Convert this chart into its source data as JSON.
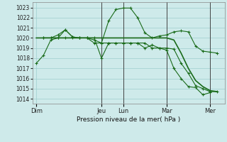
{
  "background_color": "#ceeaea",
  "grid_color": "#9ecece",
  "line_color": "#1a6b1a",
  "xlabel": "Pression niveau de la mer( hPa )",
  "ylim": [
    1013.5,
    1023.5
  ],
  "yticks": [
    1014,
    1015,
    1016,
    1017,
    1018,
    1019,
    1020,
    1021,
    1022,
    1023
  ],
  "xtick_labels": [
    "Dim",
    "Jeu",
    "Lun",
    "Mar",
    "Mer"
  ],
  "xtick_positions": [
    0,
    9,
    12,
    18,
    24
  ],
  "xlim": [
    -0.5,
    26
  ],
  "vline_positions": [
    9,
    12,
    18,
    24
  ],
  "series1_x": [
    0,
    1,
    2,
    3,
    4,
    5,
    6,
    7,
    8,
    9,
    10,
    11,
    12,
    13,
    14,
    15,
    16,
    17,
    18,
    19,
    20,
    21,
    22,
    23,
    24
  ],
  "series1_y": [
    1017.5,
    1018.3,
    1019.8,
    1020.0,
    1020.8,
    1020.1,
    1020.0,
    1020.0,
    1020.0,
    1018.0,
    1019.5,
    1019.5,
    1019.5,
    1019.5,
    1019.5,
    1019.0,
    1019.3,
    1019.0,
    1018.8,
    1017.0,
    1016.0,
    1015.2,
    1015.1,
    1014.4,
    1014.6
  ],
  "series2_x": [
    1,
    2,
    3,
    4,
    5,
    6,
    7,
    8,
    9,
    10,
    11,
    12,
    13,
    14,
    15,
    16,
    17,
    18,
    19,
    20,
    21,
    22,
    23,
    24,
    25
  ],
  "series2_y": [
    1020.0,
    1020.0,
    1020.3,
    1020.8,
    1020.1,
    1020.0,
    1020.0,
    1019.8,
    1019.5,
    1021.7,
    1022.8,
    1022.95,
    1022.95,
    1022.0,
    1020.5,
    1020.0,
    1020.2,
    1020.3,
    1020.6,
    1020.7,
    1020.6,
    1019.2,
    1018.7,
    1018.6,
    1018.5
  ],
  "series3_x": [
    1,
    2,
    3,
    4,
    5,
    6,
    7,
    8,
    9,
    10,
    11,
    12,
    13,
    14,
    15,
    16,
    17,
    18,
    19,
    20,
    21,
    22,
    23,
    24,
    25
  ],
  "series3_y": [
    1020.0,
    1020.0,
    1020.0,
    1020.0,
    1020.0,
    1020.0,
    1020.0,
    1019.5,
    1019.5,
    1019.5,
    1019.5,
    1019.5,
    1019.5,
    1019.5,
    1019.5,
    1019.0,
    1019.0,
    1019.0,
    1018.9,
    1017.5,
    1016.5,
    1015.3,
    1015.0,
    1014.7,
    1014.7
  ],
  "series4_x": [
    0,
    1,
    2,
    3,
    4,
    5,
    6,
    7,
    8,
    9,
    10,
    11,
    12,
    13,
    14,
    15,
    16,
    17,
    18,
    19,
    20,
    21,
    22,
    23,
    24,
    25
  ],
  "series4_y": [
    1020.0,
    1020.0,
    1020.0,
    1020.0,
    1020.0,
    1020.0,
    1020.0,
    1020.0,
    1020.0,
    1020.0,
    1020.0,
    1020.0,
    1020.0,
    1020.0,
    1020.0,
    1020.0,
    1020.0,
    1020.0,
    1020.0,
    1019.8,
    1018.5,
    1017.0,
    1015.8,
    1015.2,
    1014.8,
    1014.7
  ]
}
